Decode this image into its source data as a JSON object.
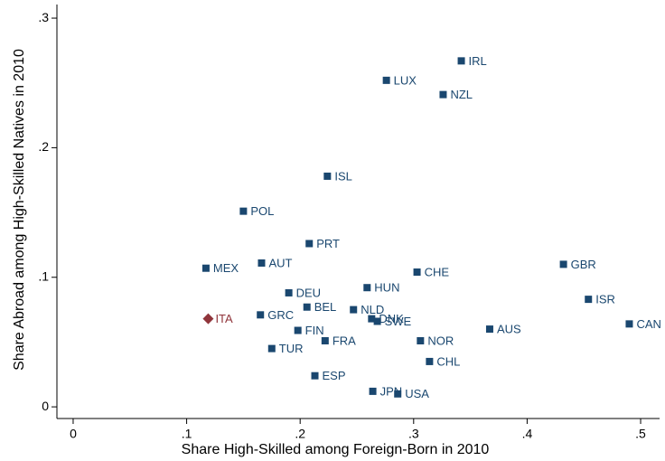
{
  "chart_data": {
    "type": "scatter",
    "x_label": "Share High-Skilled among Foreign-Born in 2010",
    "y_label": "Share Abroad among High-Skilled Natives in 2010",
    "xlim": [
      -0.0143,
      0.5167
    ],
    "ylim": [
      -0.009,
      0.3105
    ],
    "xticks": [
      0,
      {
        "value": 0.1,
        "label": ".1"
      },
      {
        "value": 0.2,
        "label": ".2"
      },
      {
        "value": 0.3,
        "label": ".3"
      },
      {
        "value": 0.4,
        "label": ".4"
      },
      {
        "value": 0.5,
        "label": ".5"
      }
    ],
    "yticks": [
      0,
      {
        "value": 0.1,
        "label": ".1"
      },
      {
        "value": 0.2,
        "label": ".2"
      },
      {
        "value": 0.3,
        "label": ".3"
      }
    ],
    "points": [
      {
        "label": "IRL",
        "x": 0.342,
        "y": 0.267,
        "color": "#1a476f"
      },
      {
        "label": "LUX",
        "x": 0.276,
        "y": 0.252,
        "color": "#1a476f"
      },
      {
        "label": "NZL",
        "x": 0.326,
        "y": 0.241,
        "color": "#1a476f"
      },
      {
        "label": "ISL",
        "x": 0.224,
        "y": 0.178,
        "color": "#1a476f"
      },
      {
        "label": "POL",
        "x": 0.15,
        "y": 0.151,
        "color": "#1a476f"
      },
      {
        "label": "PRT",
        "x": 0.208,
        "y": 0.126,
        "color": "#1a476f"
      },
      {
        "label": "MEX",
        "x": 0.117,
        "y": 0.107,
        "color": "#1a476f"
      },
      {
        "label": "AUT",
        "x": 0.166,
        "y": 0.111,
        "color": "#1a476f"
      },
      {
        "label": "CHE",
        "x": 0.303,
        "y": 0.104,
        "color": "#1a476f"
      },
      {
        "label": "GBR",
        "x": 0.432,
        "y": 0.11,
        "color": "#1a476f"
      },
      {
        "label": "HUN",
        "x": 0.259,
        "y": 0.092,
        "color": "#1a476f"
      },
      {
        "label": "DEU",
        "x": 0.19,
        "y": 0.088,
        "color": "#1a476f"
      },
      {
        "label": "ISR",
        "x": 0.454,
        "y": 0.083,
        "color": "#1a476f"
      },
      {
        "label": "BEL",
        "x": 0.206,
        "y": 0.077,
        "color": "#1a476f"
      },
      {
        "label": "NLD",
        "x": 0.247,
        "y": 0.075,
        "color": "#1a476f"
      },
      {
        "label": "ITA",
        "x": 0.119,
        "y": 0.068,
        "color": "#90353b"
      },
      {
        "label": "GRC",
        "x": 0.165,
        "y": 0.071,
        "color": "#1a476f"
      },
      {
        "label": "DNK",
        "x": 0.263,
        "y": 0.068,
        "color": "#1a476f"
      },
      {
        "label": "SWE",
        "x": 0.268,
        "y": 0.066,
        "color": "#1a476f"
      },
      {
        "label": "CAN",
        "x": 0.49,
        "y": 0.064,
        "color": "#1a476f"
      },
      {
        "label": "AUS",
        "x": 0.367,
        "y": 0.06,
        "color": "#1a476f"
      },
      {
        "label": "FIN",
        "x": 0.198,
        "y": 0.059,
        "color": "#1a476f"
      },
      {
        "label": "FRA",
        "x": 0.222,
        "y": 0.051,
        "color": "#1a476f"
      },
      {
        "label": "NOR",
        "x": 0.306,
        "y": 0.051,
        "color": "#1a476f"
      },
      {
        "label": "TUR",
        "x": 0.175,
        "y": 0.045,
        "color": "#1a476f"
      },
      {
        "label": "CHL",
        "x": 0.314,
        "y": 0.035,
        "color": "#1a476f"
      },
      {
        "label": "ESP",
        "x": 0.213,
        "y": 0.024,
        "color": "#1a476f"
      },
      {
        "label": "JPN",
        "x": 0.264,
        "y": 0.012,
        "color": "#1a476f"
      },
      {
        "label": "USA",
        "x": 0.286,
        "y": 0.01,
        "color": "#1a476f"
      }
    ]
  }
}
